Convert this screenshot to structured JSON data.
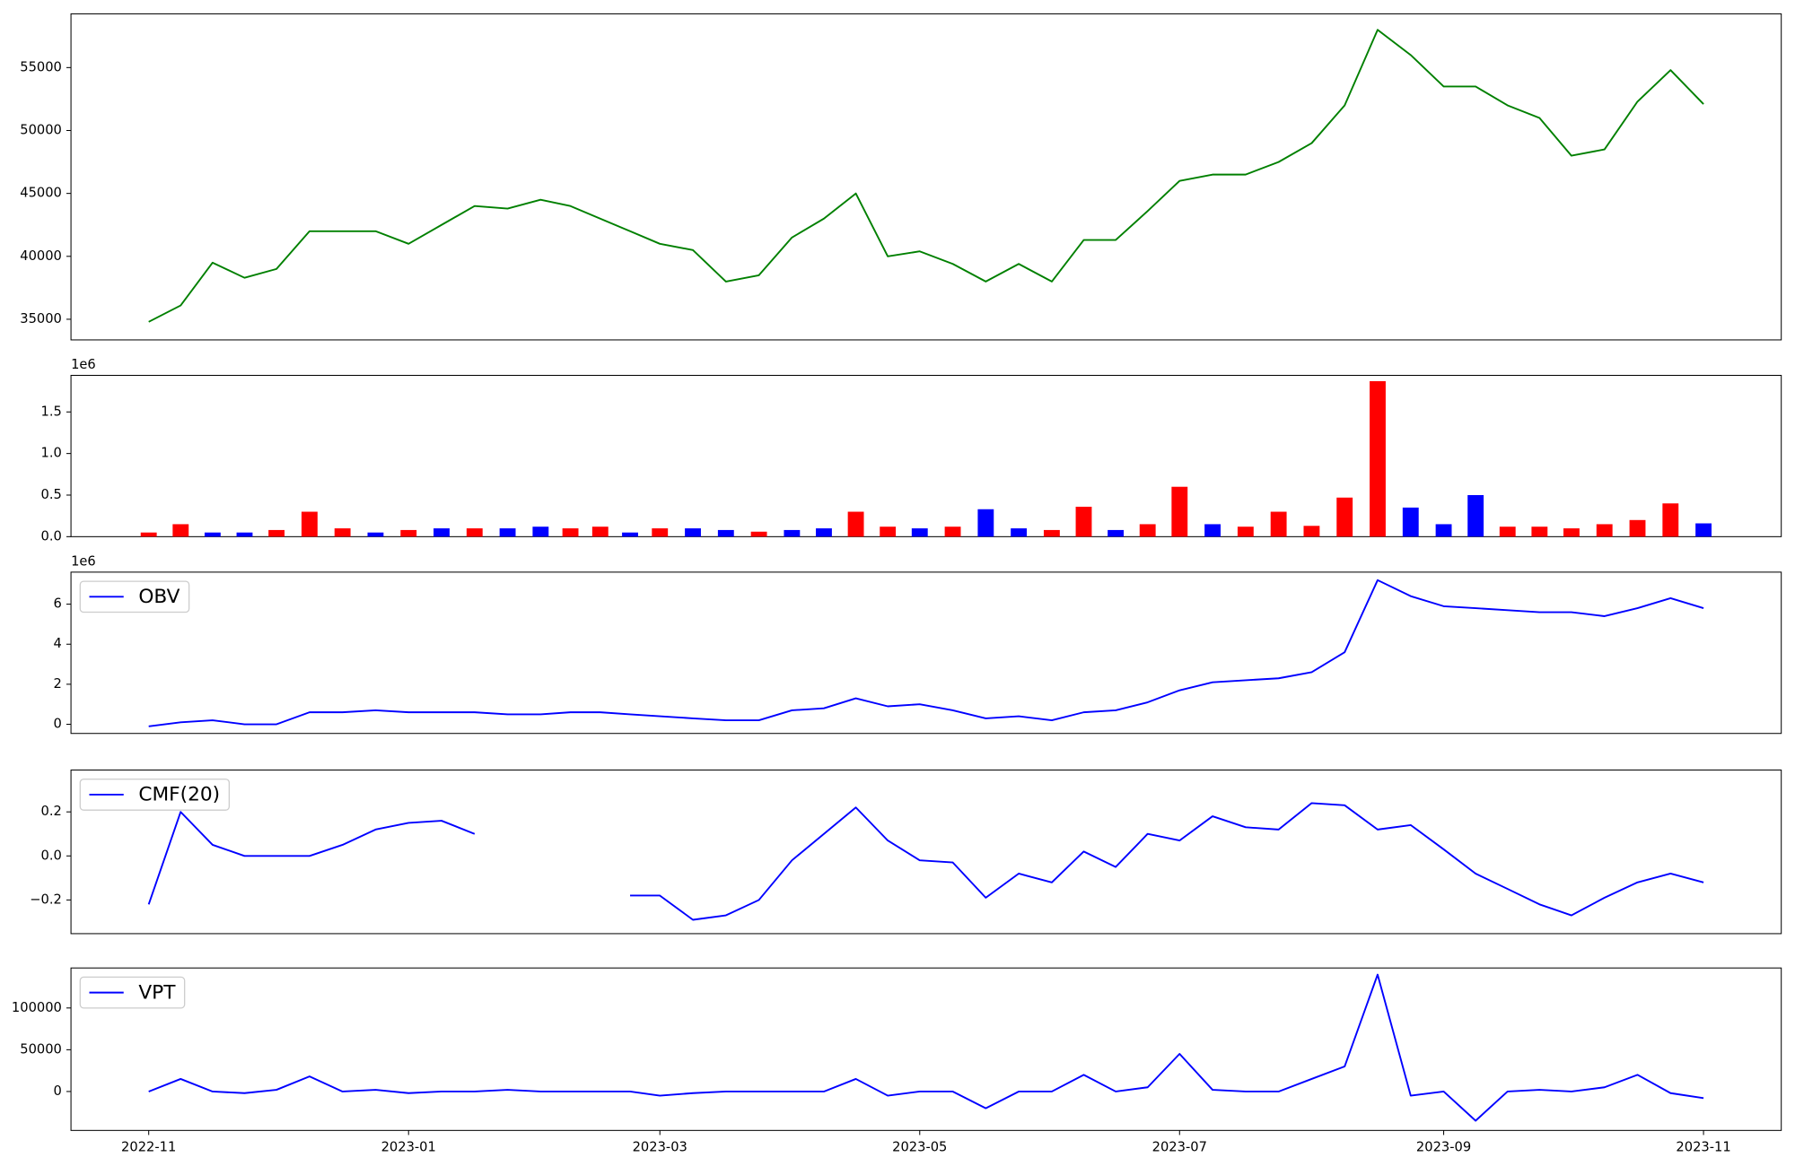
{
  "chart_data": [
    {
      "type": "line",
      "color": "green",
      "x": [
        "2022-11",
        "2022-11",
        "2022-11",
        "2022-11",
        "2022-12",
        "2022-12",
        "2022-12",
        "2022-12",
        "2023-01",
        "2023-01",
        "2023-01",
        "2023-01",
        "2023-02",
        "2023-02",
        "2023-02",
        "2023-02",
        "2023-03",
        "2023-03",
        "2023-03",
        "2023-03",
        "2023-04",
        "2023-04",
        "2023-04",
        "2023-04",
        "2023-05",
        "2023-05",
        "2023-05",
        "2023-05",
        "2023-06",
        "2023-06",
        "2023-06",
        "2023-06",
        "2023-07",
        "2023-07",
        "2023-07",
        "2023-07",
        "2023-08",
        "2023-08",
        "2023-08",
        "2023-08",
        "2023-09",
        "2023-09",
        "2023-09",
        "2023-09",
        "2023-10",
        "2023-10",
        "2023-10",
        "2023-10",
        "2023-11"
      ],
      "values": [
        34800,
        36100,
        39500,
        38300,
        39000,
        42000,
        42000,
        42000,
        41000,
        42500,
        44000,
        43800,
        44500,
        44000,
        43000,
        42000,
        41000,
        40500,
        38000,
        38500,
        41500,
        43000,
        45000,
        40000,
        40400,
        39400,
        38000,
        39400,
        38000,
        41300,
        41300,
        43600,
        46000,
        46500,
        46500,
        47500,
        49000,
        52000,
        58000,
        56000,
        53500,
        53500,
        52000,
        51000,
        48000,
        48500,
        52300,
        54800,
        52100
      ],
      "ylim": [
        33360,
        59270
      ],
      "yticks": [
        35000,
        40000,
        45000,
        50000,
        55000
      ]
    },
    {
      "type": "bar",
      "offset_label": "1e6",
      "x": [
        "2022-11",
        "2022-11",
        "2022-11",
        "2022-11",
        "2022-12",
        "2022-12",
        "2022-12",
        "2022-12",
        "2023-01",
        "2023-01",
        "2023-01",
        "2023-01",
        "2023-02",
        "2023-02",
        "2023-02",
        "2023-02",
        "2023-03",
        "2023-03",
        "2023-03",
        "2023-03",
        "2023-04",
        "2023-04",
        "2023-04",
        "2023-04",
        "2023-05",
        "2023-05",
        "2023-05",
        "2023-05",
        "2023-06",
        "2023-06",
        "2023-06",
        "2023-06",
        "2023-07",
        "2023-07",
        "2023-07",
        "2023-07",
        "2023-08",
        "2023-08",
        "2023-08",
        "2023-08",
        "2023-09",
        "2023-09",
        "2023-09",
        "2023-09",
        "2023-10",
        "2023-10",
        "2023-10",
        "2023-10",
        "2023-11"
      ],
      "values": [
        50000,
        150000,
        50000,
        50000,
        80000,
        300000,
        100000,
        50000,
        80000,
        100000,
        100000,
        100000,
        120000,
        100000,
        120000,
        50000,
        100000,
        100000,
        80000,
        60000,
        80000,
        100000,
        300000,
        120000,
        100000,
        120000,
        330000,
        100000,
        80000,
        360000,
        80000,
        150000,
        600000,
        150000,
        120000,
        300000,
        130000,
        470000,
        1870000,
        350000,
        150000,
        500000,
        120000,
        120000,
        100000,
        150000,
        200000,
        400000,
        160000
      ],
      "colors": [
        "red",
        "red",
        "blue",
        "blue",
        "red",
        "red",
        "red",
        "blue",
        "red",
        "blue",
        "red",
        "blue",
        "blue",
        "red",
        "red",
        "blue",
        "red",
        "blue",
        "blue",
        "red",
        "blue",
        "blue",
        "red",
        "red",
        "blue",
        "red",
        "blue",
        "blue",
        "red",
        "red",
        "blue",
        "red",
        "red",
        "blue",
        "red",
        "red",
        "red",
        "red",
        "red",
        "blue",
        "blue",
        "blue",
        "red",
        "red",
        "red",
        "red",
        "red",
        "red",
        "blue"
      ],
      "ylim": [
        0,
        1940000
      ],
      "yticks": [
        {
          "value": 0,
          "label": "0.0"
        },
        {
          "value": 500000,
          "label": "0.5"
        },
        {
          "value": 1000000,
          "label": "1.0"
        },
        {
          "value": 1500000,
          "label": "1.5"
        }
      ]
    },
    {
      "type": "line",
      "offset_label": "1e6",
      "legend": "upper left",
      "x": [
        "2022-11",
        "2022-11",
        "2022-11",
        "2022-11",
        "2022-12",
        "2022-12",
        "2022-12",
        "2022-12",
        "2023-01",
        "2023-01",
        "2023-01",
        "2023-01",
        "2023-02",
        "2023-02",
        "2023-02",
        "2023-02",
        "2023-03",
        "2023-03",
        "2023-03",
        "2023-03",
        "2023-04",
        "2023-04",
        "2023-04",
        "2023-04",
        "2023-05",
        "2023-05",
        "2023-05",
        "2023-05",
        "2023-06",
        "2023-06",
        "2023-06",
        "2023-06",
        "2023-07",
        "2023-07",
        "2023-07",
        "2023-07",
        "2023-08",
        "2023-08",
        "2023-08",
        "2023-08",
        "2023-09",
        "2023-09",
        "2023-09",
        "2023-09",
        "2023-10",
        "2023-10",
        "2023-10",
        "2023-10",
        "2023-11"
      ],
      "series": [
        {
          "name": "OBV",
          "color": "blue",
          "values": [
            -100000,
            100000,
            200000,
            0,
            0,
            600000,
            600000,
            700000,
            600000,
            600000,
            600000,
            500000,
            500000,
            600000,
            600000,
            500000,
            400000,
            300000,
            200000,
            200000,
            700000,
            800000,
            1300000,
            900000,
            1000000,
            700000,
            300000,
            400000,
            200000,
            600000,
            700000,
            1100000,
            1700000,
            2100000,
            2200000,
            2300000,
            2600000,
            3600000,
            7200000,
            6400000,
            5900000,
            5800000,
            5700000,
            5600000,
            5600000,
            5400000,
            5800000,
            6300000,
            5800000
          ]
        }
      ],
      "ylim": [
        -457000,
        7600000
      ],
      "yticks": [
        0,
        {
          "value": 2000000,
          "label": "2"
        },
        {
          "value": 4000000,
          "label": "4"
        },
        {
          "value": 6000000,
          "label": "6"
        }
      ]
    },
    {
      "type": "line",
      "legend": "upper left",
      "x": [
        "2022-11",
        "2022-11",
        "2022-11",
        "2022-11",
        "2022-12",
        "2022-12",
        "2022-12",
        "2022-12",
        "2023-01",
        "2023-01",
        "2023-01",
        "2023-01",
        "2023-02",
        "2023-02",
        "2023-02",
        "2023-02",
        "2023-03",
        "2023-03",
        "2023-03",
        "2023-03",
        "2023-04",
        "2023-04",
        "2023-04",
        "2023-04",
        "2023-05",
        "2023-05",
        "2023-05",
        "2023-05",
        "2023-06",
        "2023-06",
        "2023-06",
        "2023-06",
        "2023-07",
        "2023-07",
        "2023-07",
        "2023-07",
        "2023-08",
        "2023-08",
        "2023-08",
        "2023-08",
        "2023-09",
        "2023-09",
        "2023-09",
        "2023-09",
        "2023-10",
        "2023-10",
        "2023-10",
        "2023-10",
        "2023-11"
      ],
      "series": [
        {
          "name": "CMF(20)",
          "color": "blue",
          "values": [
            -0.22,
            0.2,
            0.05,
            0.0,
            0.0,
            0.0,
            0.05,
            0.12,
            0.15,
            0.16,
            0.1,
            null,
            null,
            null,
            null,
            -0.18,
            -0.18,
            -0.29,
            -0.27,
            -0.2,
            -0.02,
            0.1,
            0.22,
            0.07,
            -0.02,
            -0.03,
            -0.19,
            -0.08,
            -0.12,
            0.02,
            -0.05,
            0.1,
            0.07,
            0.18,
            0.13,
            0.12,
            0.24,
            0.23,
            0.12,
            0.14,
            0.03,
            -0.08,
            -0.15,
            -0.22,
            -0.27,
            -0.19,
            -0.12,
            -0.08,
            -0.12
          ]
        }
      ],
      "ylim": [
        -0.353,
        0.39
      ],
      "yticks": [
        {
          "value": -0.2,
          "label": "−0.2"
        },
        {
          "value": 0,
          "label": "0.0"
        },
        0.2
      ]
    },
    {
      "type": "line",
      "legend": "upper left",
      "x": [
        "2022-11",
        "2022-11",
        "2022-11",
        "2022-11",
        "2022-12",
        "2022-12",
        "2022-12",
        "2022-12",
        "2023-01",
        "2023-01",
        "2023-01",
        "2023-01",
        "2023-02",
        "2023-02",
        "2023-02",
        "2023-02",
        "2023-03",
        "2023-03",
        "2023-03",
        "2023-03",
        "2023-04",
        "2023-04",
        "2023-04",
        "2023-04",
        "2023-05",
        "2023-05",
        "2023-05",
        "2023-05",
        "2023-06",
        "2023-06",
        "2023-06",
        "2023-06",
        "2023-07",
        "2023-07",
        "2023-07",
        "2023-07",
        "2023-08",
        "2023-08",
        "2023-08",
        "2023-08",
        "2023-09",
        "2023-09",
        "2023-09",
        "2023-09",
        "2023-10",
        "2023-10",
        "2023-10",
        "2023-10",
        "2023-11"
      ],
      "series": [
        {
          "name": "VPT",
          "color": "blue",
          "values": [
            0,
            15000,
            0,
            -2000,
            2000,
            18000,
            0,
            2000,
            -2000,
            0,
            0,
            2000,
            0,
            0,
            0,
            0,
            -5000,
            -2000,
            0,
            0,
            0,
            0,
            15000,
            -5000,
            0,
            0,
            -20000,
            0,
            0,
            20000,
            0,
            5000,
            45000,
            2000,
            0,
            0,
            15000,
            30000,
            140000,
            -5000,
            0,
            -35000,
            0,
            2000,
            0,
            5000,
            20000,
            -2000,
            -8000
          ]
        }
      ],
      "ylim": [
        -46600,
        147900
      ],
      "yticks": [
        0,
        50000,
        100000
      ],
      "xticks": [
        "2022-11",
        "2023-01",
        "2023-03",
        "2023-05",
        "2023-07",
        "2023-09",
        "2023-11"
      ]
    }
  ]
}
